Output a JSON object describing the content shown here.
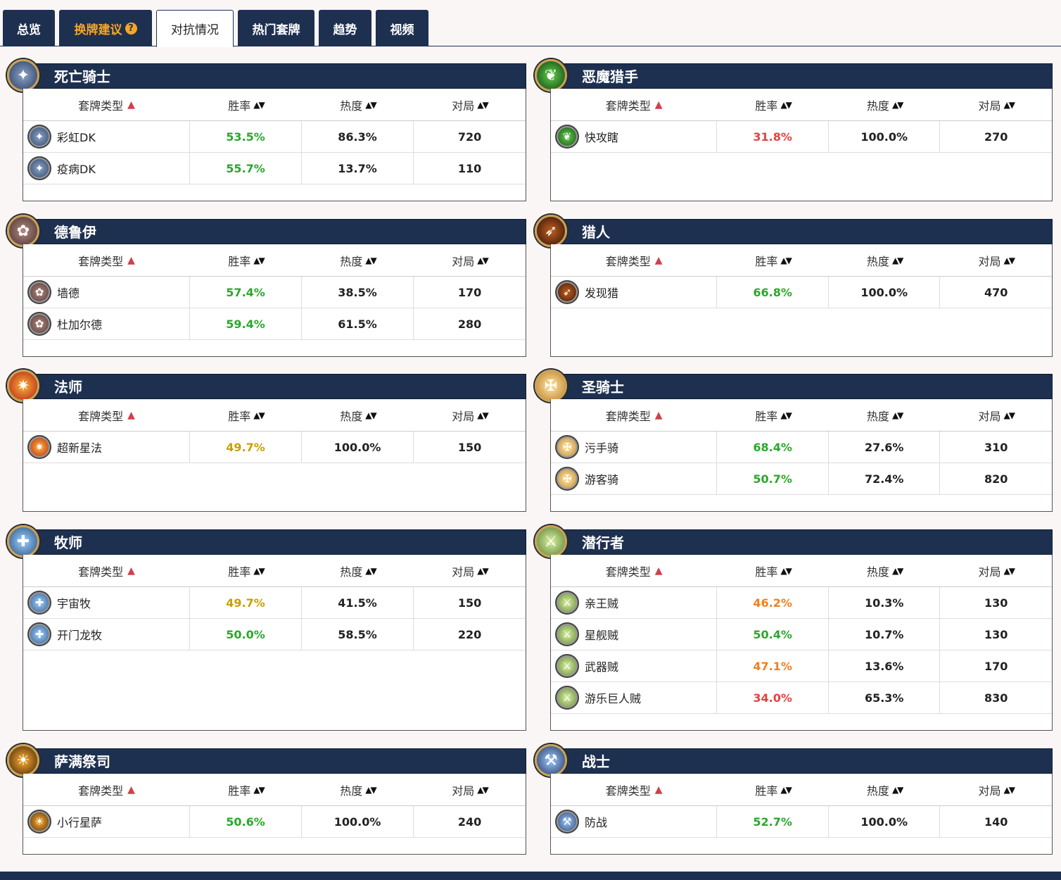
{
  "tabs": [
    {
      "label": "总览"
    },
    {
      "label": "换牌建议"
    },
    {
      "label": "对抗情况"
    },
    {
      "label": "热门套牌"
    },
    {
      "label": "趋势"
    },
    {
      "label": "视频"
    }
  ],
  "help_mark": "?",
  "table_headers": {
    "deck_type": "套牌类型",
    "winrate": "胜率",
    "popularity": "热度",
    "games": "对局"
  },
  "colors": {
    "header_bg": "#1e3050",
    "good": "#2aa82a",
    "neutral": "#c8a000",
    "warn": "#f08020",
    "bad": "#e84040",
    "tab_orange": "#f5a623"
  },
  "classes": [
    {
      "name": "死亡骑士",
      "icon": "death-knight-icon",
      "decks": [
        {
          "name": "彩虹DK",
          "winrate": "53.5%",
          "popularity": "86.3%",
          "games": "720",
          "rate_color": "good"
        },
        {
          "name": "疫病DK",
          "winrate": "55.7%",
          "popularity": "13.7%",
          "games": "110",
          "rate_color": "good"
        }
      ]
    },
    {
      "name": "恶魔猎手",
      "icon": "demon-hunter-icon",
      "decks": [
        {
          "name": "快攻瞎",
          "winrate": "31.8%",
          "popularity": "100.0%",
          "games": "270",
          "rate_color": "bad"
        }
      ]
    },
    {
      "name": "德鲁伊",
      "icon": "druid-icon",
      "decks": [
        {
          "name": "墙德",
          "winrate": "57.4%",
          "popularity": "38.5%",
          "games": "170",
          "rate_color": "good"
        },
        {
          "name": "杜加尔德",
          "winrate": "59.4%",
          "popularity": "61.5%",
          "games": "280",
          "rate_color": "good"
        }
      ]
    },
    {
      "name": "猎人",
      "icon": "hunter-icon",
      "decks": [
        {
          "name": "发现猎",
          "winrate": "66.8%",
          "popularity": "100.0%",
          "games": "470",
          "rate_color": "good"
        }
      ]
    },
    {
      "name": "法师",
      "icon": "mage-icon",
      "decks": [
        {
          "name": "超新星法",
          "winrate": "49.7%",
          "popularity": "100.0%",
          "games": "150",
          "rate_color": "neutral"
        }
      ]
    },
    {
      "name": "圣骑士",
      "icon": "paladin-icon",
      "decks": [
        {
          "name": "污手骑",
          "winrate": "68.4%",
          "popularity": "27.6%",
          "games": "310",
          "rate_color": "good"
        },
        {
          "name": "游客骑",
          "winrate": "50.7%",
          "popularity": "72.4%",
          "games": "820",
          "rate_color": "good"
        }
      ]
    },
    {
      "name": "牧师",
      "icon": "priest-icon",
      "decks": [
        {
          "name": "宇宙牧",
          "winrate": "49.7%",
          "popularity": "41.5%",
          "games": "150",
          "rate_color": "neutral"
        },
        {
          "name": "开门龙牧",
          "winrate": "50.0%",
          "popularity": "58.5%",
          "games": "220",
          "rate_color": "good"
        }
      ]
    },
    {
      "name": "潜行者",
      "icon": "rogue-icon",
      "decks": [
        {
          "name": "亲王贼",
          "winrate": "46.2%",
          "popularity": "10.3%",
          "games": "130",
          "rate_color": "warn"
        },
        {
          "name": "星舰贼",
          "winrate": "50.4%",
          "popularity": "10.7%",
          "games": "130",
          "rate_color": "good"
        },
        {
          "name": "武器贼",
          "winrate": "47.1%",
          "popularity": "13.6%",
          "games": "170",
          "rate_color": "warn"
        },
        {
          "name": "游乐巨人贼",
          "winrate": "34.0%",
          "popularity": "65.3%",
          "games": "830",
          "rate_color": "bad"
        }
      ]
    },
    {
      "name": "萨满祭司",
      "icon": "shaman-icon",
      "decks": [
        {
          "name": "小行星萨",
          "winrate": "50.6%",
          "popularity": "100.0%",
          "games": "240",
          "rate_color": "good"
        }
      ]
    },
    {
      "name": "战士",
      "icon": "warrior-icon",
      "decks": [
        {
          "name": "防战",
          "winrate": "52.7%",
          "popularity": "100.0%",
          "games": "140",
          "rate_color": "good"
        }
      ]
    }
  ]
}
